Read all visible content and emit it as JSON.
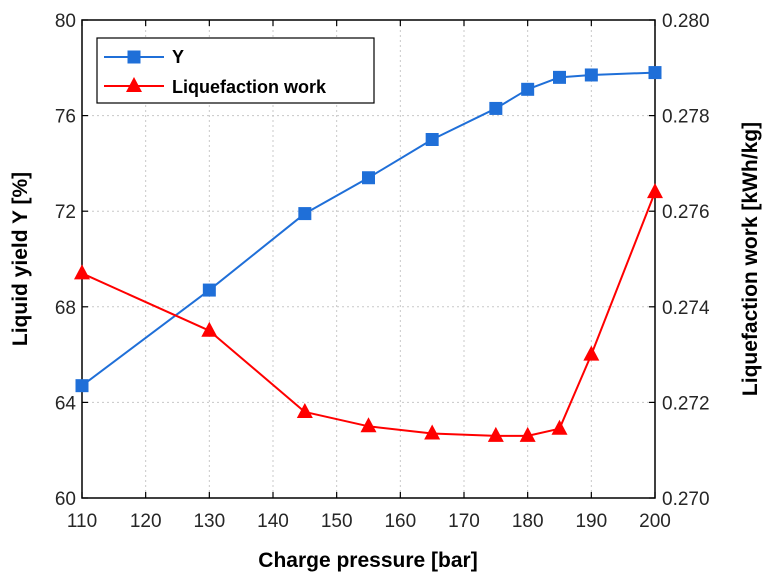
{
  "chart_data": {
    "type": "line",
    "xlabel": "Charge pressure [bar]",
    "ylabel": "Liquid yield Y [%]",
    "y2label": "Liquefaction work [kWh/kg]",
    "xlim": [
      110,
      200
    ],
    "ylim": [
      60,
      80
    ],
    "y2lim": [
      0.27,
      0.28
    ],
    "x_ticks": [
      "110",
      "120",
      "130",
      "140",
      "150",
      "160",
      "170",
      "180",
      "190",
      "200"
    ],
    "y_ticks": [
      "60",
      "64",
      "68",
      "72",
      "76",
      "80"
    ],
    "y2_ticks": [
      "0.270",
      "0.272",
      "0.274",
      "0.276",
      "0.278",
      "0.280"
    ],
    "grid": true,
    "legend": {
      "placement": "top-left"
    },
    "series": [
      {
        "name": "Y",
        "axis": "left",
        "color": "#1f6fd8",
        "marker": "square",
        "x": [
          110,
          130,
          145,
          155,
          165,
          175,
          180,
          185,
          190,
          200
        ],
        "values": [
          64.7,
          68.7,
          71.9,
          73.4,
          75.0,
          76.3,
          77.1,
          77.6,
          77.7,
          77.8
        ]
      },
      {
        "name": "Liquefaction work",
        "axis": "right",
        "color": "#ff0000",
        "marker": "triangle",
        "x": [
          110,
          130,
          145,
          155,
          165,
          175,
          180,
          185,
          190,
          200
        ],
        "values": [
          0.2747,
          0.2735,
          0.2718,
          0.2715,
          0.27135,
          0.2713,
          0.2713,
          0.27145,
          0.273,
          0.2764
        ]
      }
    ]
  }
}
